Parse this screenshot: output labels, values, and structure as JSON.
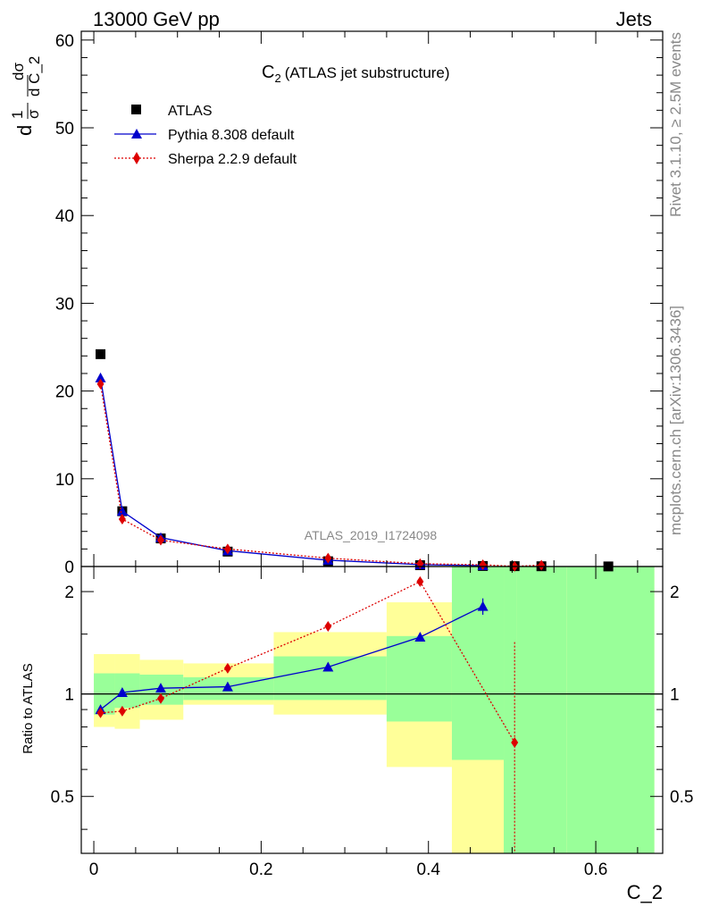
{
  "header": {
    "left": "13000 GeV pp",
    "right": "Jets"
  },
  "side_texts": {
    "rivet": "Rivet 3.1.10, ≥ 2.5M events",
    "mcplots": "mcplots.cern.ch [arXiv:1306.3436]"
  },
  "analysis_id": "ATLAS_2019_I1724098",
  "colors": {
    "atlas": "#000000",
    "pythia": "#0000cc",
    "sherpa": "#dd0000",
    "band_green": "#99ff99",
    "band_yellow": "#ffff99"
  },
  "chart_data": [
    {
      "type": "scatter",
      "title": "C₂ (ATLAS jet substructure)",
      "title_main": "C",
      "title_sub": "2",
      "title_rest": "(ATLAS jet substructure)",
      "ylabel": "d1/σ dσ/d C_2",
      "ylabel_parts": {
        "d": "d",
        "one": "1",
        "sigma": "σ",
        "dsig": "dσ",
        "dc": "d C_2"
      },
      "xlim": [
        -0.015,
        0.68
      ],
      "ylim": [
        0,
        61
      ],
      "yticks": [
        0,
        10,
        20,
        30,
        40,
        50,
        60
      ],
      "ytick_labels": [
        "0",
        "10",
        "20",
        "30",
        "40",
        "50",
        "60"
      ],
      "legend_position": "top-left",
      "series": [
        {
          "name": "ATLAS",
          "marker": "square",
          "x": [
            0.008,
            0.034,
            0.08,
            0.16,
            0.28,
            0.39,
            0.465,
            0.503,
            0.535,
            0.615
          ],
          "y": [
            24.2,
            6.3,
            3.2,
            1.7,
            0.6,
            0.15,
            0.06,
            0.04,
            0.03,
            0.01
          ]
        },
        {
          "name": "Pythia 8.308 default",
          "marker": "triangle",
          "x": [
            0.008,
            0.034,
            0.08,
            0.16,
            0.28,
            0.39,
            0.465
          ],
          "y": [
            21.5,
            6.3,
            3.3,
            1.8,
            0.72,
            0.22,
            0.1
          ]
        },
        {
          "name": "Sherpa 2.2.9 default",
          "marker": "diamond",
          "x": [
            0.008,
            0.034,
            0.08,
            0.16,
            0.28,
            0.39,
            0.465,
            0.503,
            0.535
          ],
          "y": [
            20.8,
            5.4,
            3.0,
            2.0,
            0.95,
            0.32,
            0.2,
            0.03,
            0.15
          ]
        }
      ]
    },
    {
      "type": "scatter",
      "ylabel": "Ratio to ATLAS",
      "xlabel": "C_2",
      "xlim": [
        -0.015,
        0.68
      ],
      "ylim": [
        0.34,
        2.37
      ],
      "xticks": [
        0,
        0.2,
        0.4,
        0.6
      ],
      "xtick_labels": [
        "0",
        "0.2",
        "0.4",
        "0.6"
      ],
      "yticks": [
        0.5,
        1,
        2
      ],
      "ytick_labels": [
        "0.5",
        "1",
        "2"
      ],
      "reference_line": 1,
      "bands": [
        {
          "x0": 0.0,
          "x1": 0.025,
          "g_lo": 0.87,
          "g_hi": 1.15,
          "y_lo": 0.8,
          "y_hi": 1.31
        },
        {
          "x0": 0.025,
          "x1": 0.055,
          "g_lo": 0.91,
          "g_hi": 1.15,
          "y_lo": 0.79,
          "y_hi": 1.31
        },
        {
          "x0": 0.055,
          "x1": 0.107,
          "g_lo": 0.93,
          "g_hi": 1.14,
          "y_lo": 0.84,
          "y_hi": 1.26
        },
        {
          "x0": 0.107,
          "x1": 0.215,
          "g_lo": 0.96,
          "g_hi": 1.12,
          "y_lo": 0.93,
          "y_hi": 1.23
        },
        {
          "x0": 0.215,
          "x1": 0.35,
          "g_lo": 0.96,
          "g_hi": 1.29,
          "y_lo": 0.87,
          "y_hi": 1.52
        },
        {
          "x0": 0.35,
          "x1": 0.428,
          "g_lo": 0.83,
          "g_hi": 1.48,
          "y_lo": 0.61,
          "y_hi": 1.86
        },
        {
          "x0": 0.428,
          "x1": 0.49,
          "g_lo": 0.64,
          "g_hi": 2.37,
          "y_lo": 0.34,
          "y_hi": 2.37
        },
        {
          "x0": 0.49,
          "x1": 0.505,
          "g_lo": 0.34,
          "g_hi": 2.37,
          "y_lo": 0.34,
          "y_hi": 2.37
        },
        {
          "x0": 0.505,
          "x1": 0.565,
          "g_lo": 0.34,
          "g_hi": 2.37,
          "y_lo": 0.34,
          "y_hi": 2.37
        },
        {
          "x0": 0.565,
          "x1": 0.67,
          "g_lo": 0.34,
          "g_hi": 2.37,
          "y_lo": 0.34,
          "y_hi": 2.37
        }
      ],
      "series": [
        {
          "name": "Pythia 8.308 default",
          "marker": "triangle",
          "x": [
            0.008,
            0.034,
            0.08,
            0.16,
            0.28,
            0.39,
            0.465
          ],
          "y": [
            0.9,
            1.01,
            1.04,
            1.05,
            1.2,
            1.47,
            1.81
          ],
          "err_lo": [
            0.02,
            0.01,
            0.01,
            0.01,
            0.01,
            0.02,
            0.1
          ],
          "err_hi": [
            0.02,
            0.01,
            0.01,
            0.01,
            0.01,
            0.02,
            0.1
          ]
        },
        {
          "name": "Sherpa 2.2.9 default",
          "marker": "diamond",
          "x": [
            0.008,
            0.034,
            0.08,
            0.16,
            0.28,
            0.39,
            0.503
          ],
          "y": [
            0.88,
            0.89,
            0.97,
            1.19,
            1.58,
            2.14,
            0.72
          ],
          "err_lo": [
            0.01,
            0.01,
            0.01,
            0.01,
            0.02,
            0.03,
            0.38
          ],
          "err_hi": [
            0.01,
            0.01,
            0.01,
            0.01,
            0.02,
            0.03,
            0.7
          ]
        }
      ]
    }
  ]
}
